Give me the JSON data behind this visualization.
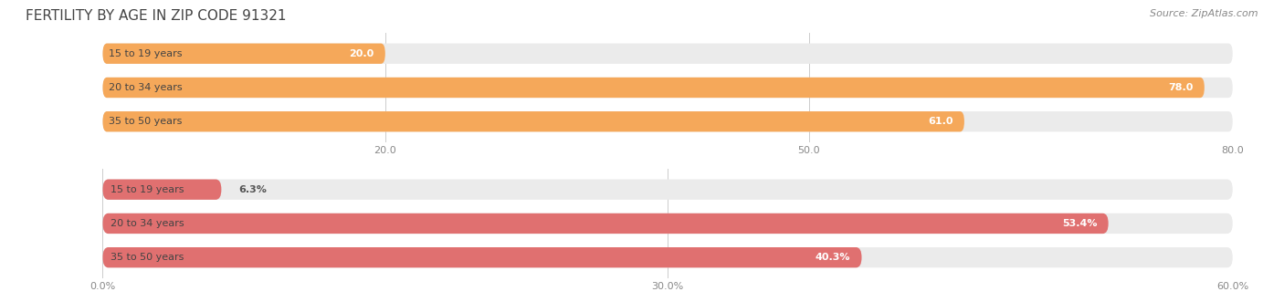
{
  "title": "FERTILITY BY AGE IN ZIP CODE 91321",
  "source": "Source: ZipAtlas.com",
  "top_chart": {
    "categories": [
      "15 to 19 years",
      "20 to 34 years",
      "35 to 50 years"
    ],
    "values": [
      20.0,
      78.0,
      61.0
    ],
    "xmax": 80.0,
    "xticks": [
      20.0,
      50.0,
      80.0
    ],
    "xtick_labels": [
      "20.0",
      "50.0",
      "80.0"
    ],
    "bar_color": "#F5A85A",
    "bar_bg_color": "#EBEBEB",
    "value_label_color": "#FFFFFF",
    "value_label_color_outside": "#555555"
  },
  "bottom_chart": {
    "categories": [
      "15 to 19 years",
      "20 to 34 years",
      "35 to 50 years"
    ],
    "values": [
      6.3,
      53.4,
      40.3
    ],
    "xmax": 60.0,
    "xticks": [
      0.0,
      30.0,
      60.0
    ],
    "xtick_labels": [
      "0.0%",
      "30.0%",
      "60.0%"
    ],
    "bar_color": "#E07070",
    "bar_bg_color": "#EBEBEB",
    "value_label_color": "#FFFFFF",
    "value_label_color_outside": "#555555"
  },
  "label_fontsize": 8,
  "value_fontsize": 8,
  "title_fontsize": 11,
  "source_fontsize": 8,
  "title_color": "#444444",
  "tick_color": "#888888",
  "bar_height": 0.6,
  "background_color": "#FFFFFF"
}
